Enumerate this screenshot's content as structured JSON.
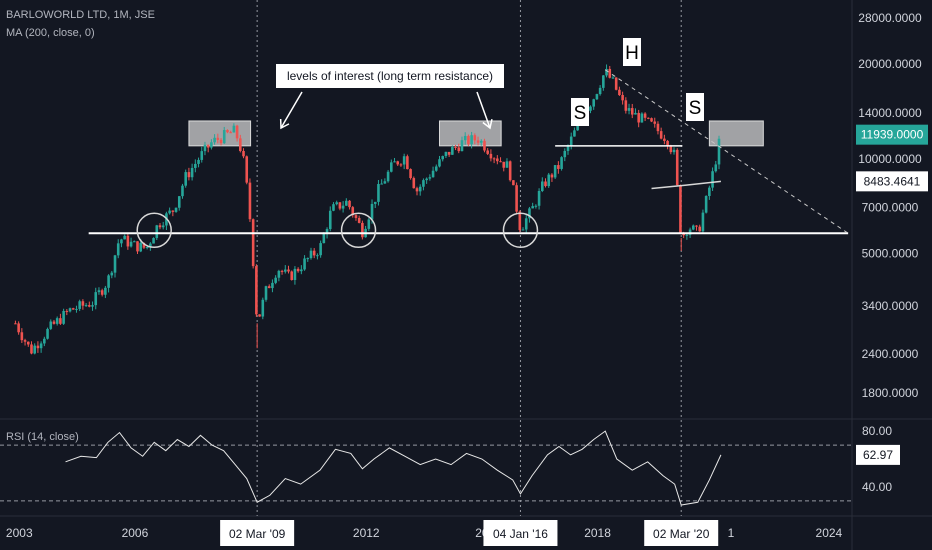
{
  "header": {
    "title": "BARLOWORLD LTD, 1M, JSE",
    "ma_label": "MA (200, close, 0)"
  },
  "rsi": {
    "label": "RSI (14, close)"
  },
  "colors": {
    "background": "#131722",
    "up": "#26a69a",
    "down": "#ef5350",
    "text": "#d1d4dc",
    "annotation": "#ffffff",
    "badge_price": "#26a69a"
  },
  "chart_data": [
    {
      "type": "candlestick",
      "title": "BARLOWORLD LTD, 1M, JSE",
      "scale": "log",
      "ylim": [
        1500,
        32000
      ],
      "xlim": [
        2002.5,
        2024.6
      ],
      "price_ticks": [
        28000,
        20000,
        14000,
        10000,
        7000,
        5000,
        3400,
        2400,
        1800
      ],
      "price_tick_labels": [
        "28000.0000",
        "20000.0000",
        "14000.0000",
        "10000.0000",
        "7000.0000",
        "5000.0000",
        "3400.0000",
        "2400.0000",
        "1800.0000"
      ],
      "time_ticks": [
        2003,
        2006,
        2012,
        2015,
        2018,
        2024
      ],
      "time_tick_labels": [
        "2003",
        "2006",
        "2012",
        "20",
        "2018",
        "2024"
      ],
      "time_markers": [
        {
          "label": "02 Mar '09",
          "x": 2009.17
        },
        {
          "label": "04 Jan '16",
          "x": 2016.0
        },
        {
          "label": "02 Mar '20",
          "x": 2020.17
        }
      ],
      "partial_tick": {
        "label": "1",
        "x": 2021.2
      },
      "last_price": 11939.0,
      "last_price_label": "11939.0000",
      "ma_value": 8483.4641,
      "ma_value_label": "8483.4641",
      "price_path": [
        [
          2002.9,
          3000
        ],
        [
          2003.3,
          2450
        ],
        [
          2003.8,
          2900
        ],
        [
          2004.3,
          3300
        ],
        [
          2004.9,
          3500
        ],
        [
          2005.3,
          4100
        ],
        [
          2005.6,
          5600
        ],
        [
          2006.0,
          5300
        ],
        [
          2006.3,
          5200
        ],
        [
          2006.6,
          6200
        ],
        [
          2007.0,
          6900
        ],
        [
          2007.3,
          8700
        ],
        [
          2007.7,
          10200
        ],
        [
          2008.0,
          11300
        ],
        [
          2008.3,
          11800
        ],
        [
          2008.6,
          12300
        ],
        [
          2008.8,
          10200
        ],
        [
          2008.95,
          7300
        ],
        [
          2009.05,
          5100
        ],
        [
          2009.17,
          3000
        ],
        [
          2009.4,
          3800
        ],
        [
          2009.7,
          4500
        ],
        [
          2010.0,
          4200
        ],
        [
          2010.4,
          4700
        ],
        [
          2010.8,
          5200
        ],
        [
          2011.1,
          6900
        ],
        [
          2011.5,
          7300
        ],
        [
          2011.9,
          5900
        ],
        [
          2012.3,
          7900
        ],
        [
          2012.7,
          9600
        ],
        [
          2013.0,
          10200
        ],
        [
          2013.3,
          7900
        ],
        [
          2013.7,
          9100
        ],
        [
          2014.1,
          10400
        ],
        [
          2014.5,
          11300
        ],
        [
          2014.9,
          11600
        ],
        [
          2015.3,
          10300
        ],
        [
          2015.7,
          9400
        ],
        [
          2016.0,
          6000
        ],
        [
          2016.3,
          6900
        ],
        [
          2016.6,
          8300
        ],
        [
          2017.0,
          9500
        ],
        [
          2017.3,
          11400
        ],
        [
          2017.6,
          13700
        ],
        [
          2017.9,
          15700
        ],
        [
          2018.2,
          19000
        ],
        [
          2018.4,
          17500
        ],
        [
          2018.7,
          14500
        ],
        [
          2019.0,
          13700
        ],
        [
          2019.4,
          12800
        ],
        [
          2019.8,
          11600
        ],
        [
          2020.0,
          10200
        ],
        [
          2020.17,
          5600
        ],
        [
          2020.35,
          6100
        ],
        [
          2020.6,
          5800
        ],
        [
          2020.8,
          7200
        ],
        [
          2021.0,
          9100
        ],
        [
          2021.2,
          11939
        ]
      ],
      "ma_path": [
        [
          2019.4,
          8050
        ],
        [
          2020.3,
          8250
        ],
        [
          2021.2,
          8483
        ]
      ],
      "support_level": 5800,
      "support_range": [
        2004.8,
        2024.5
      ],
      "neckline_level": 11000,
      "neckline_range": [
        2016.9,
        2020.2
      ],
      "trendline": [
        [
          2018.2,
          19200
        ],
        [
          2024.5,
          5800
        ]
      ],
      "resistance_boxes": [
        {
          "x0": 2007.4,
          "x1": 2009.0,
          "y0": 11000,
          "y1": 13200
        },
        {
          "x0": 2013.9,
          "x1": 2015.5,
          "y0": 11000,
          "y1": 13200
        },
        {
          "x0": 2020.9,
          "x1": 2022.3,
          "y0": 11000,
          "y1": 13200
        }
      ],
      "circles": [
        {
          "x": 2006.5,
          "y": 5800
        },
        {
          "x": 2011.8,
          "y": 5800
        },
        {
          "x": 2016.0,
          "y": 5800
        }
      ],
      "annotations": {
        "levels_text": "levels of interest (long term resistance)",
        "shoulder_left": "S",
        "head": "H",
        "shoulder_right": "S"
      }
    },
    {
      "type": "line",
      "title": "RSI (14, close)",
      "ylim": [
        22,
        88
      ],
      "ticks": [
        80,
        40
      ],
      "tick_labels": [
        "80.00",
        "40.00"
      ],
      "levels": [
        70,
        30
      ],
      "last_value_label": "62.97",
      "series": [
        {
          "values": [
            [
              2004.2,
              58
            ],
            [
              2004.6,
              62
            ],
            [
              2005.0,
              61
            ],
            [
              2005.3,
              72
            ],
            [
              2005.6,
              79
            ],
            [
              2005.9,
              68
            ],
            [
              2006.2,
              62
            ],
            [
              2006.5,
              72
            ],
            [
              2006.8,
              66
            ],
            [
              2007.1,
              74
            ],
            [
              2007.4,
              69
            ],
            [
              2007.7,
              77
            ],
            [
              2008.0,
              70
            ],
            [
              2008.3,
              66
            ],
            [
              2008.6,
              56
            ],
            [
              2008.9,
              46
            ],
            [
              2009.17,
              29
            ],
            [
              2009.5,
              34
            ],
            [
              2009.9,
              46
            ],
            [
              2010.3,
              42
            ],
            [
              2010.8,
              52
            ],
            [
              2011.2,
              67
            ],
            [
              2011.6,
              64
            ],
            [
              2011.9,
              53
            ],
            [
              2012.2,
              60
            ],
            [
              2012.6,
              68
            ],
            [
              2013.0,
              62
            ],
            [
              2013.4,
              56
            ],
            [
              2013.8,
              60
            ],
            [
              2014.2,
              56
            ],
            [
              2014.6,
              64
            ],
            [
              2015.0,
              60
            ],
            [
              2015.4,
              52
            ],
            [
              2015.8,
              45
            ],
            [
              2016.0,
              35
            ],
            [
              2016.3,
              48
            ],
            [
              2016.7,
              63
            ],
            [
              2017.0,
              69
            ],
            [
              2017.3,
              63
            ],
            [
              2017.6,
              67
            ],
            [
              2017.9,
              74
            ],
            [
              2018.2,
              80
            ],
            [
              2018.5,
              60
            ],
            [
              2018.9,
              52
            ],
            [
              2019.3,
              58
            ],
            [
              2019.7,
              48
            ],
            [
              2020.0,
              42
            ],
            [
              2020.17,
              27
            ],
            [
              2020.6,
              29
            ],
            [
              2020.9,
              45
            ],
            [
              2021.2,
              62.97
            ]
          ]
        }
      ]
    }
  ]
}
